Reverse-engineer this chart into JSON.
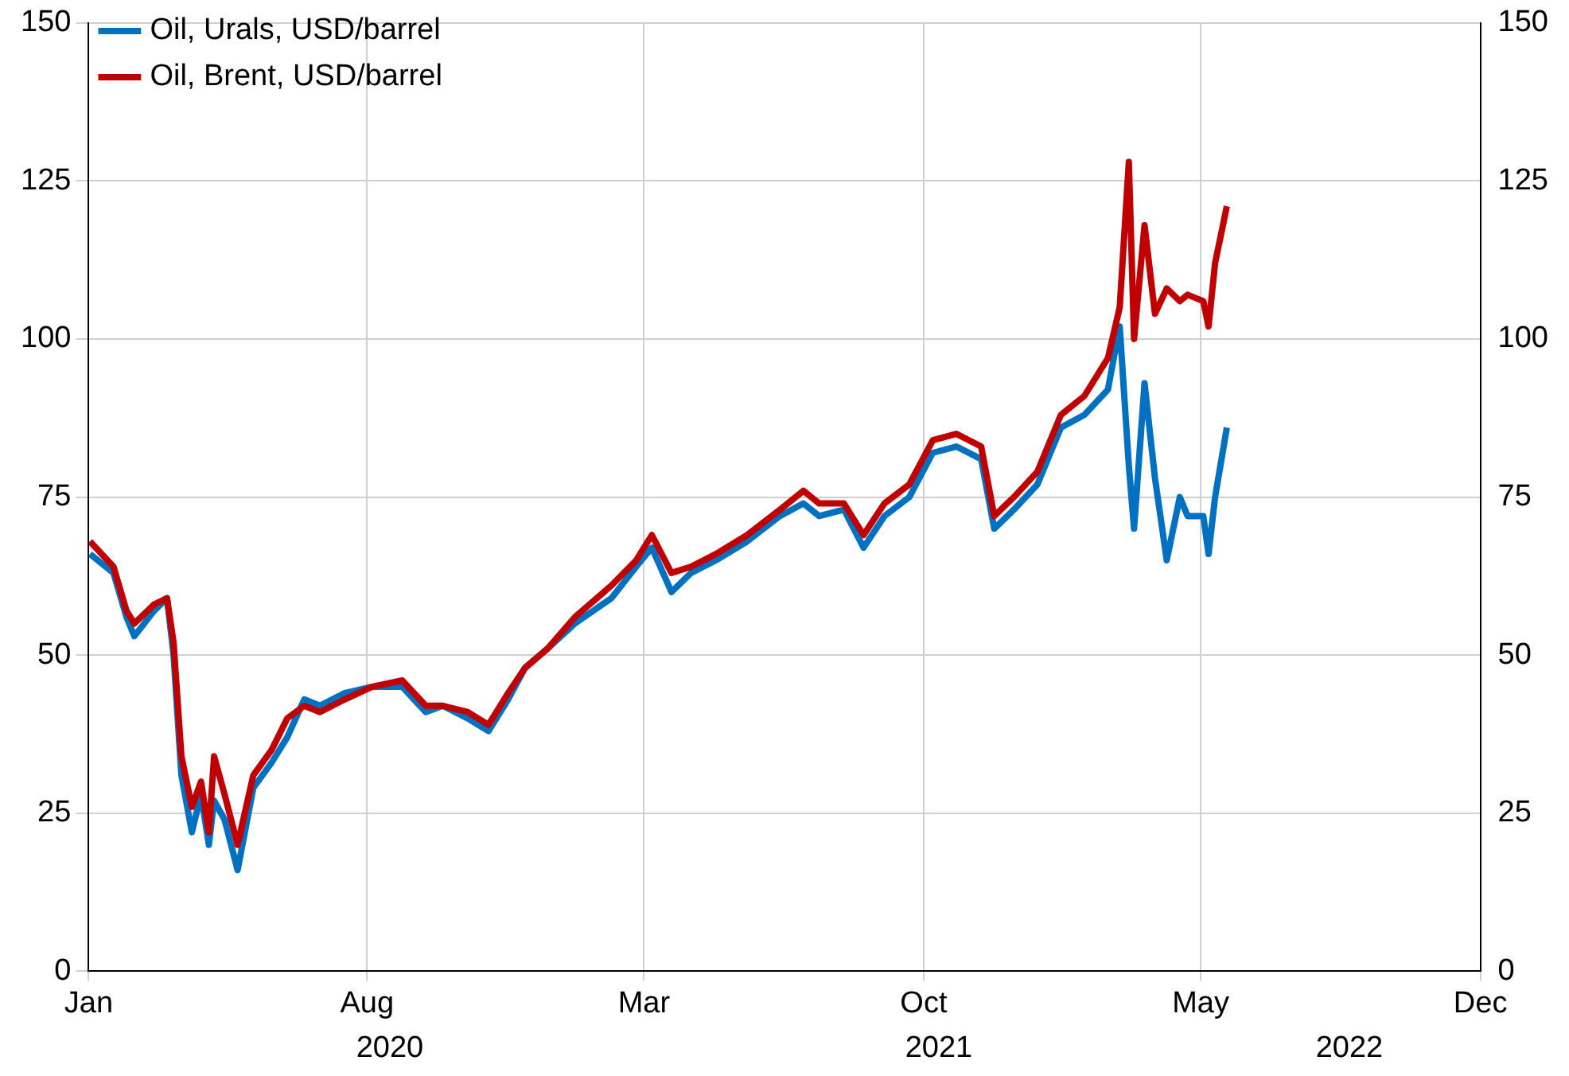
{
  "chart_data": {
    "type": "line",
    "xticks": [
      {
        "value": "2020-01-01",
        "label": "Jan"
      },
      {
        "value": "2020-08-01",
        "label": "Aug"
      },
      {
        "value": "2021-03-01",
        "label": "Mar"
      },
      {
        "value": "2021-10-01",
        "label": "Oct"
      },
      {
        "value": "2022-05-01",
        "label": "May"
      },
      {
        "value": "2022-12-01",
        "label": "Dec"
      }
    ],
    "xlim": [
      "2020-01-01",
      "2022-12-01"
    ],
    "ylim": [
      0,
      150
    ],
    "yticks": [
      0,
      25,
      50,
      75,
      100,
      125,
      150
    ],
    "y2lim": [
      0,
      150
    ],
    "y2ticks": [
      0,
      25,
      50,
      75,
      100,
      125,
      150
    ],
    "annotations": [
      "2020",
      "2021",
      "2022"
    ],
    "grid": true,
    "legend": "top left",
    "marker": "none",
    "line_style": "solid",
    "x": [
      "2020-01-02",
      "2020-01-20",
      "2020-01-30",
      "2020-02-05",
      "2020-02-20",
      "2020-03-01",
      "2020-03-06",
      "2020-03-12",
      "2020-03-20",
      "2020-03-27",
      "2020-04-02",
      "2020-04-06",
      "2020-04-14",
      "2020-04-24",
      "2020-05-06",
      "2020-05-20",
      "2020-06-01",
      "2020-06-14",
      "2020-06-26",
      "2020-07-15",
      "2020-08-05",
      "2020-08-28",
      "2020-09-15",
      "2020-09-28",
      "2020-10-17",
      "2020-11-02",
      "2020-11-17",
      "2020-11-30",
      "2020-12-17",
      "2021-01-07",
      "2021-02-04",
      "2021-02-23",
      "2021-03-07",
      "2021-03-22",
      "2021-04-06",
      "2021-04-25",
      "2021-05-19",
      "2021-06-13",
      "2021-07-01",
      "2021-07-13",
      "2021-08-01",
      "2021-08-16",
      "2021-09-01",
      "2021-09-20",
      "2021-10-08",
      "2021-10-26",
      "2021-11-14",
      "2021-11-24",
      "2021-12-09",
      "2021-12-27",
      "2022-01-14",
      "2022-02-01",
      "2022-02-19",
      "2022-02-28",
      "2022-03-07",
      "2022-03-11",
      "2022-03-19",
      "2022-03-27",
      "2022-04-05",
      "2022-04-15",
      "2022-04-21",
      "2022-05-03",
      "2022-05-07",
      "2022-05-12",
      "2022-05-21"
    ],
    "series": [
      {
        "name": "Oil, Urals, USD/barrel",
        "color": "#0070c0",
        "values": [
          66,
          63,
          56,
          53,
          57,
          59,
          50,
          31,
          22,
          28,
          20,
          27,
          24,
          16,
          29,
          33,
          37,
          43,
          42,
          44,
          45,
          45,
          41,
          42,
          40,
          38,
          43,
          48,
          51,
          55,
          59,
          64,
          67,
          60,
          63,
          65,
          68,
          72,
          74,
          72,
          73,
          67,
          72,
          75,
          82,
          83,
          81,
          70,
          73,
          77,
          86,
          88,
          92,
          102,
          80,
          70,
          93,
          78,
          65,
          75,
          72,
          72,
          66,
          75,
          86
        ]
      },
      {
        "name": "Oil, Brent, USD/barrel",
        "color": "#c00000",
        "values": [
          68,
          64,
          57,
          55,
          58,
          59,
          52,
          34,
          26,
          30,
          22,
          34,
          28,
          20,
          31,
          35,
          40,
          42,
          41,
          43,
          45,
          46,
          42,
          42,
          41,
          39,
          44,
          48,
          51,
          56,
          61,
          65,
          69,
          63,
          64,
          66,
          69,
          73,
          76,
          74,
          74,
          69,
          74,
          77,
          84,
          85,
          83,
          72,
          75,
          79,
          88,
          91,
          97,
          105,
          128,
          100,
          118,
          104,
          108,
          106,
          107,
          106,
          102,
          112,
          121
        ]
      }
    ]
  }
}
